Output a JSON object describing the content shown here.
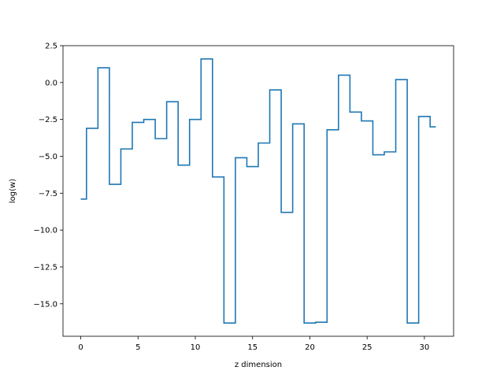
{
  "chart_data": {
    "type": "line",
    "drawstyle": "steps-mid",
    "title": "",
    "xlabel": "z dimension",
    "ylabel": "log(w)",
    "xlim": [
      -1.55,
      32.55
    ],
    "ylim": [
      -17.2,
      2.5
    ],
    "xticks": [
      0,
      5,
      10,
      15,
      20,
      25,
      30
    ],
    "xtick_labels": [
      "0",
      "5",
      "10",
      "15",
      "20",
      "25",
      "30"
    ],
    "yticks": [
      2.5,
      0.0,
      -2.5,
      -5.0,
      -7.5,
      -10.0,
      -12.5,
      -15.0
    ],
    "ytick_labels": [
      "2.5",
      "0.0",
      "−2.5",
      "−5.0",
      "−7.5",
      "−10.0",
      "−12.5",
      "−15.0"
    ],
    "grid": false,
    "legend": "none",
    "series": [
      {
        "color": "#1f77b4",
        "x": [
          0,
          1,
          2,
          3,
          4,
          5,
          6,
          7,
          8,
          9,
          10,
          11,
          12,
          13,
          14,
          15,
          16,
          17,
          18,
          19,
          20,
          21,
          22,
          23,
          24,
          25,
          26,
          27,
          28,
          29,
          30,
          31
        ],
        "y": [
          -7.9,
          -3.1,
          1.0,
          -6.9,
          -4.5,
          -2.7,
          -2.5,
          -3.8,
          -1.3,
          -5.6,
          -2.5,
          1.6,
          -6.4,
          -16.3,
          -5.1,
          -5.7,
          -4.1,
          -0.5,
          -8.8,
          -2.8,
          -16.3,
          -16.25,
          -3.2,
          0.5,
          -2.0,
          -2.6,
          -4.9,
          -4.7,
          0.2,
          -16.3,
          -2.3,
          -3.0
        ]
      }
    ]
  }
}
